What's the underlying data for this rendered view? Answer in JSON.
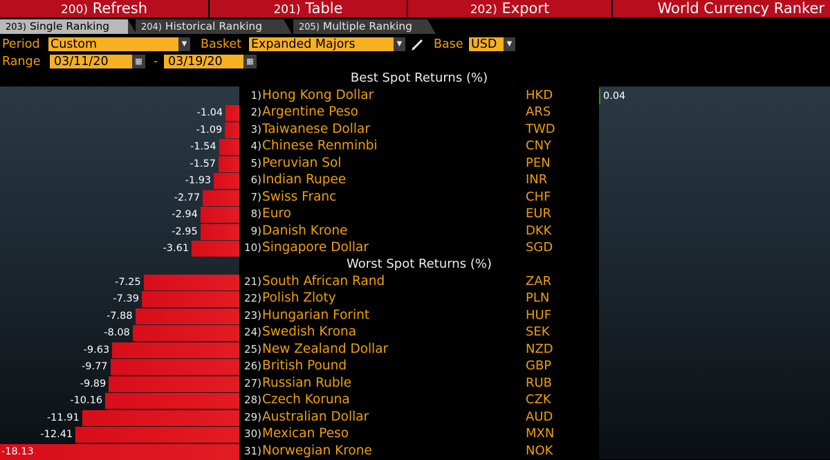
{
  "menu": {
    "refresh": {
      "num": "200)",
      "label": "Refresh"
    },
    "table": {
      "num": "201)",
      "label": "Table"
    },
    "export": {
      "num": "202)",
      "label": "Export"
    },
    "title": "World Currency Ranker"
  },
  "tabs": [
    {
      "num": "203)",
      "label": "Single Ranking"
    },
    {
      "num": "204)",
      "label": "Historical Ranking"
    },
    {
      "num": "205)",
      "label": "Multiple Ranking"
    }
  ],
  "settings": {
    "period_label": "Period",
    "period_value": "Custom",
    "basket_label": "Basket",
    "basket_value": "Expanded Majors",
    "base_label": "Base",
    "base_value": "USD",
    "range_label": "Range",
    "range_start": "03/11/20",
    "range_sep": "-",
    "range_end": "03/19/20"
  },
  "best": {
    "title": "Best Spot Returns (%)",
    "rows": [
      {
        "rank": "1)",
        "name": "Hong Kong Dollar",
        "code": "HKD",
        "value": 0.04,
        "label": "0.04"
      },
      {
        "rank": "2)",
        "name": "Argentine Peso",
        "code": "ARS",
        "value": -1.04,
        "label": "-1.04"
      },
      {
        "rank": "3)",
        "name": "Taiwanese Dollar",
        "code": "TWD",
        "value": -1.09,
        "label": "-1.09"
      },
      {
        "rank": "4)",
        "name": "Chinese Renminbi",
        "code": "CNY",
        "value": -1.54,
        "label": "-1.54"
      },
      {
        "rank": "5)",
        "name": "Peruvian Sol",
        "code": "PEN",
        "value": -1.57,
        "label": "-1.57"
      },
      {
        "rank": "6)",
        "name": "Indian Rupee",
        "code": "INR",
        "value": -1.93,
        "label": "-1.93"
      },
      {
        "rank": "7)",
        "name": "Swiss Franc",
        "code": "CHF",
        "value": -2.77,
        "label": "-2.77"
      },
      {
        "rank": "8)",
        "name": "Euro",
        "code": "EUR",
        "value": -2.94,
        "label": "-2.94"
      },
      {
        "rank": "9)",
        "name": "Danish Krone",
        "code": "DKK",
        "value": -2.95,
        "label": "-2.95"
      },
      {
        "rank": "10)",
        "name": "Singapore Dollar",
        "code": "SGD",
        "value": -3.61,
        "label": "-3.61"
      }
    ]
  },
  "worst": {
    "title": "Worst Spot Returns (%)",
    "rows": [
      {
        "rank": "21)",
        "name": "South African Rand",
        "code": "ZAR",
        "value": -7.25,
        "label": "-7.25"
      },
      {
        "rank": "22)",
        "name": "Polish Zloty",
        "code": "PLN",
        "value": -7.39,
        "label": "-7.39"
      },
      {
        "rank": "23)",
        "name": "Hungarian Forint",
        "code": "HUF",
        "value": -7.88,
        "label": "-7.88"
      },
      {
        "rank": "24)",
        "name": "Swedish Krona",
        "code": "SEK",
        "value": -8.08,
        "label": "-8.08"
      },
      {
        "rank": "25)",
        "name": "New Zealand Dollar",
        "code": "NZD",
        "value": -9.63,
        "label": "-9.63"
      },
      {
        "rank": "26)",
        "name": "British Pound",
        "code": "GBP",
        "value": -9.77,
        "label": "-9.77"
      },
      {
        "rank": "27)",
        "name": "Russian Ruble",
        "code": "RUB",
        "value": -9.89,
        "label": "-9.89"
      },
      {
        "rank": "28)",
        "name": "Czech Koruna",
        "code": "CZK",
        "value": -10.16,
        "label": "-10.16"
      },
      {
        "rank": "29)",
        "name": "Australian Dollar",
        "code": "AUD",
        "value": -11.91,
        "label": "-11.91"
      },
      {
        "rank": "30)",
        "name": "Mexican Peso",
        "code": "MXN",
        "value": -12.41,
        "label": "-12.41"
      },
      {
        "rank": "31)",
        "name": "Norwegian Krone",
        "code": "NOK",
        "value": -18.13,
        "label": "-18.13"
      }
    ]
  },
  "colors": {
    "menu_red": "#b80d1c",
    "amber": "#f0a000",
    "field_amber": "#f6b021",
    "bar_red": "#e31b23",
    "bar_green": "#1ba01b"
  }
}
